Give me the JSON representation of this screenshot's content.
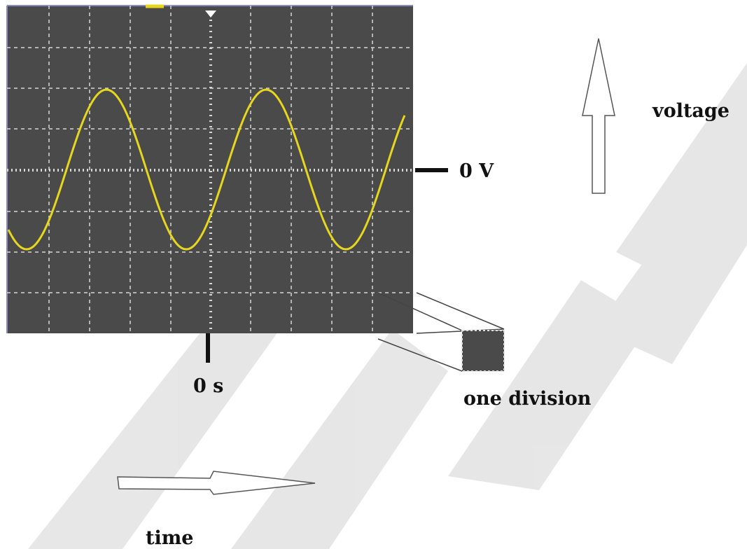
{
  "labels": {
    "zero_volt": "0 V",
    "zero_time": "0 s",
    "voltage": "voltage",
    "time": "time",
    "one_division": "one division"
  },
  "watermark": "SAMPLE",
  "colors": {
    "screen": "#4a4a4a",
    "trace": "#e6d61e",
    "grid": "#d8d8d8",
    "screen_border": "#8a8ac8",
    "watermark": "#e4e4e4"
  }
}
